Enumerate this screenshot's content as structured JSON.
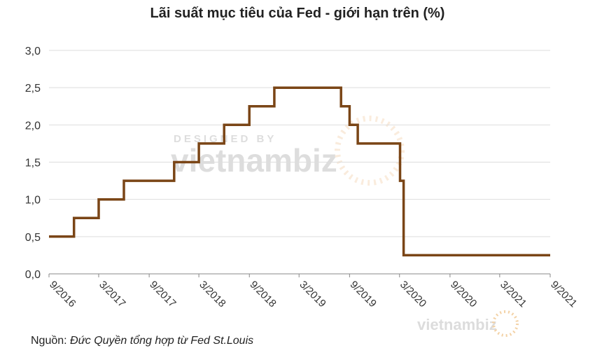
{
  "chart_data": {
    "type": "line",
    "title": "Lãi suất mục tiêu của Fed - giới hạn trên (%)",
    "xlabel": "",
    "ylabel": "",
    "ylim": [
      0,
      3.0
    ],
    "y_ticks": [
      "0,0",
      "0,5",
      "1,0",
      "1,5",
      "2,0",
      "2,5",
      "3,0"
    ],
    "x_ticks": [
      "9/2016",
      "3/2017",
      "9/2017",
      "3/2018",
      "9/2018",
      "3/2019",
      "9/2019",
      "3/2020",
      "9/2020",
      "3/2021",
      "9/2021"
    ],
    "grid": true,
    "legend": "none",
    "step": true,
    "series": [
      {
        "color": "#7a4516",
        "points": [
          {
            "x": "2016-09",
            "y": 0.5
          },
          {
            "x": "2016-12",
            "y": 0.75
          },
          {
            "x": "2017-03",
            "y": 1.0
          },
          {
            "x": "2017-06",
            "y": 1.25
          },
          {
            "x": "2017-12",
            "y": 1.5
          },
          {
            "x": "2018-03",
            "y": 1.75
          },
          {
            "x": "2018-06",
            "y": 2.0
          },
          {
            "x": "2018-09",
            "y": 2.25
          },
          {
            "x": "2018-12",
            "y": 2.5
          },
          {
            "x": "2019-08",
            "y": 2.25
          },
          {
            "x": "2019-09",
            "y": 2.0
          },
          {
            "x": "2019-10",
            "y": 1.75
          },
          {
            "x": "2020-03-03",
            "y": 1.25
          },
          {
            "x": "2020-03-16",
            "y": 0.25
          },
          {
            "x": "2021-09",
            "y": 0.25
          }
        ]
      }
    ]
  },
  "source": {
    "label": "Nguồn:",
    "text": "Đức Quyền tổng hợp từ Fed St.Louis"
  },
  "watermark": {
    "designed_by": "DESIGNED BY",
    "brand": "vietnambiz"
  }
}
